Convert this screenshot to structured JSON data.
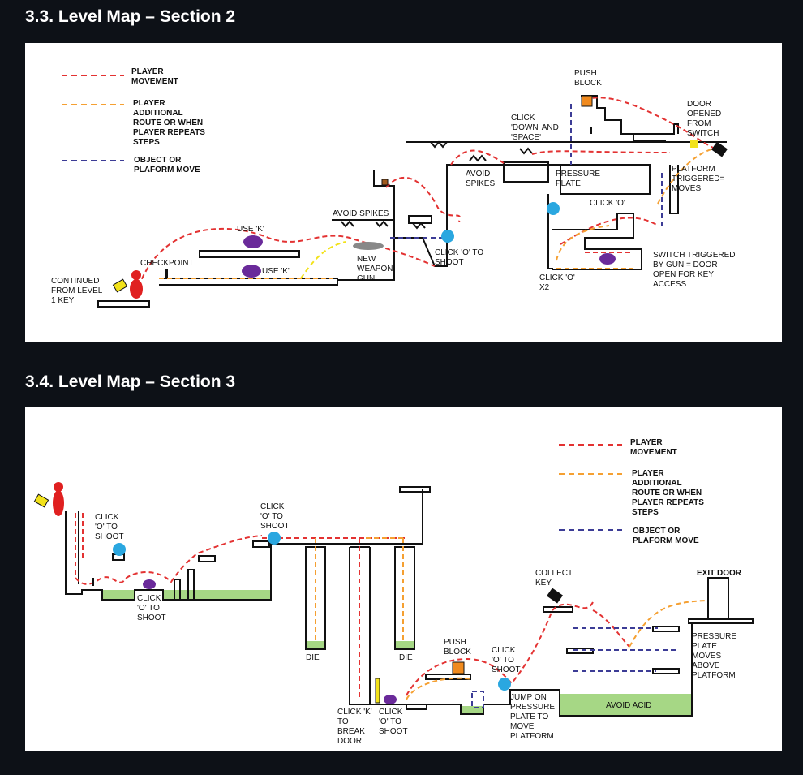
{
  "sections": [
    {
      "title": "3.3. Level Map – Section 2"
    },
    {
      "title": "3.4. Level Map – Section 3"
    }
  ],
  "legend": {
    "player_movement": [
      "PLAYER",
      "MOVEMENT"
    ],
    "additional_route": [
      "PLAYER",
      "ADDITIONAL",
      "ROUTE OR WHEN",
      "PLAYER REPEATS",
      "STEPS"
    ],
    "object_move": [
      "OBJECT OR",
      "PLAFORM MOVE"
    ]
  },
  "colors": {
    "background": "#0d1117",
    "panel": "#ffffff",
    "player_movement": "#e33232",
    "additional_route": "#f5a032",
    "object_move": "#3c3c96",
    "ground": "#111111",
    "acid": "#a6d785",
    "enemy": "#6a2a9a",
    "orb": "#2aa7e0",
    "push_block": "#f08a1e",
    "key": "#f2e21a",
    "player": "#e02020"
  },
  "map1": {
    "labels": {
      "push_block": [
        "PUSH",
        "BLOCK"
      ],
      "door_opened": [
        "DOOR",
        "OPENED",
        "FROM",
        "SWITCH"
      ],
      "click_down_space": [
        "CLICK",
        "'DOWN' AND",
        "'SPACE'"
      ],
      "avoid_spikes": [
        "AVOID",
        "SPIKES"
      ],
      "pressure_plate": [
        "PRESSURE",
        "PLATE"
      ],
      "platform_triggered": [
        "PLATFORM",
        "TRIGGERED=",
        "MOVES"
      ],
      "click_o": "CLICK 'O'",
      "avoid_spikes_2": "AVOID SPIKES",
      "use_k_top": "USE 'K'",
      "use_k_bottom": "USE 'K'",
      "checkpoint": "CHECKPOINT",
      "new_weapon": [
        "NEW",
        "WEAPON:",
        "GUN"
      ],
      "click_o_shoot": [
        "CLICK 'O' TO",
        "SHOOT"
      ],
      "switch_triggered": [
        "SWITCH TRIGGERED",
        "BY GUN = DOOR",
        "OPEN FOR KEY",
        "ACCESS"
      ],
      "click_o_x2": [
        "CLICK 'O'",
        "X2"
      ],
      "continued": [
        "CONTINUED",
        "FROM LEVEL",
        "1 KEY"
      ]
    }
  },
  "map2": {
    "labels": {
      "click_o_shoot_1": [
        "CLICK",
        "'O' TO",
        "SHOOT"
      ],
      "click_o_shoot_2": [
        "CLICK",
        "'O' TO",
        "SHOOT"
      ],
      "click_o_shoot_3": [
        "CLICK",
        "'O' TO",
        "SHOOT"
      ],
      "click_o_shoot_4": [
        "CLICK",
        "'O' TO",
        "SHOOT"
      ],
      "click_o_shoot_5": [
        "CLICK",
        "'O' TO",
        "SHOOT"
      ],
      "die_1": "DIE",
      "die_2": "DIE",
      "push_block": [
        "PUSH",
        "BLOCK"
      ],
      "click_k": [
        "CLICK 'K'",
        "TO",
        "BREAK",
        "DOOR"
      ],
      "jump_plate": [
        "JUMP ON",
        "PRESSURE",
        "PLATE TO",
        "MOVE",
        "PLATFORM"
      ],
      "avoid_acid": "AVOID ACID",
      "collect_key": [
        "COLLECT",
        "KEY"
      ],
      "exit_door": "EXIT DOOR",
      "pressure_plate_moves": [
        "PRESSURE",
        "PLATE",
        "MOVES",
        "ABOVE",
        "PLATFORM"
      ]
    }
  }
}
